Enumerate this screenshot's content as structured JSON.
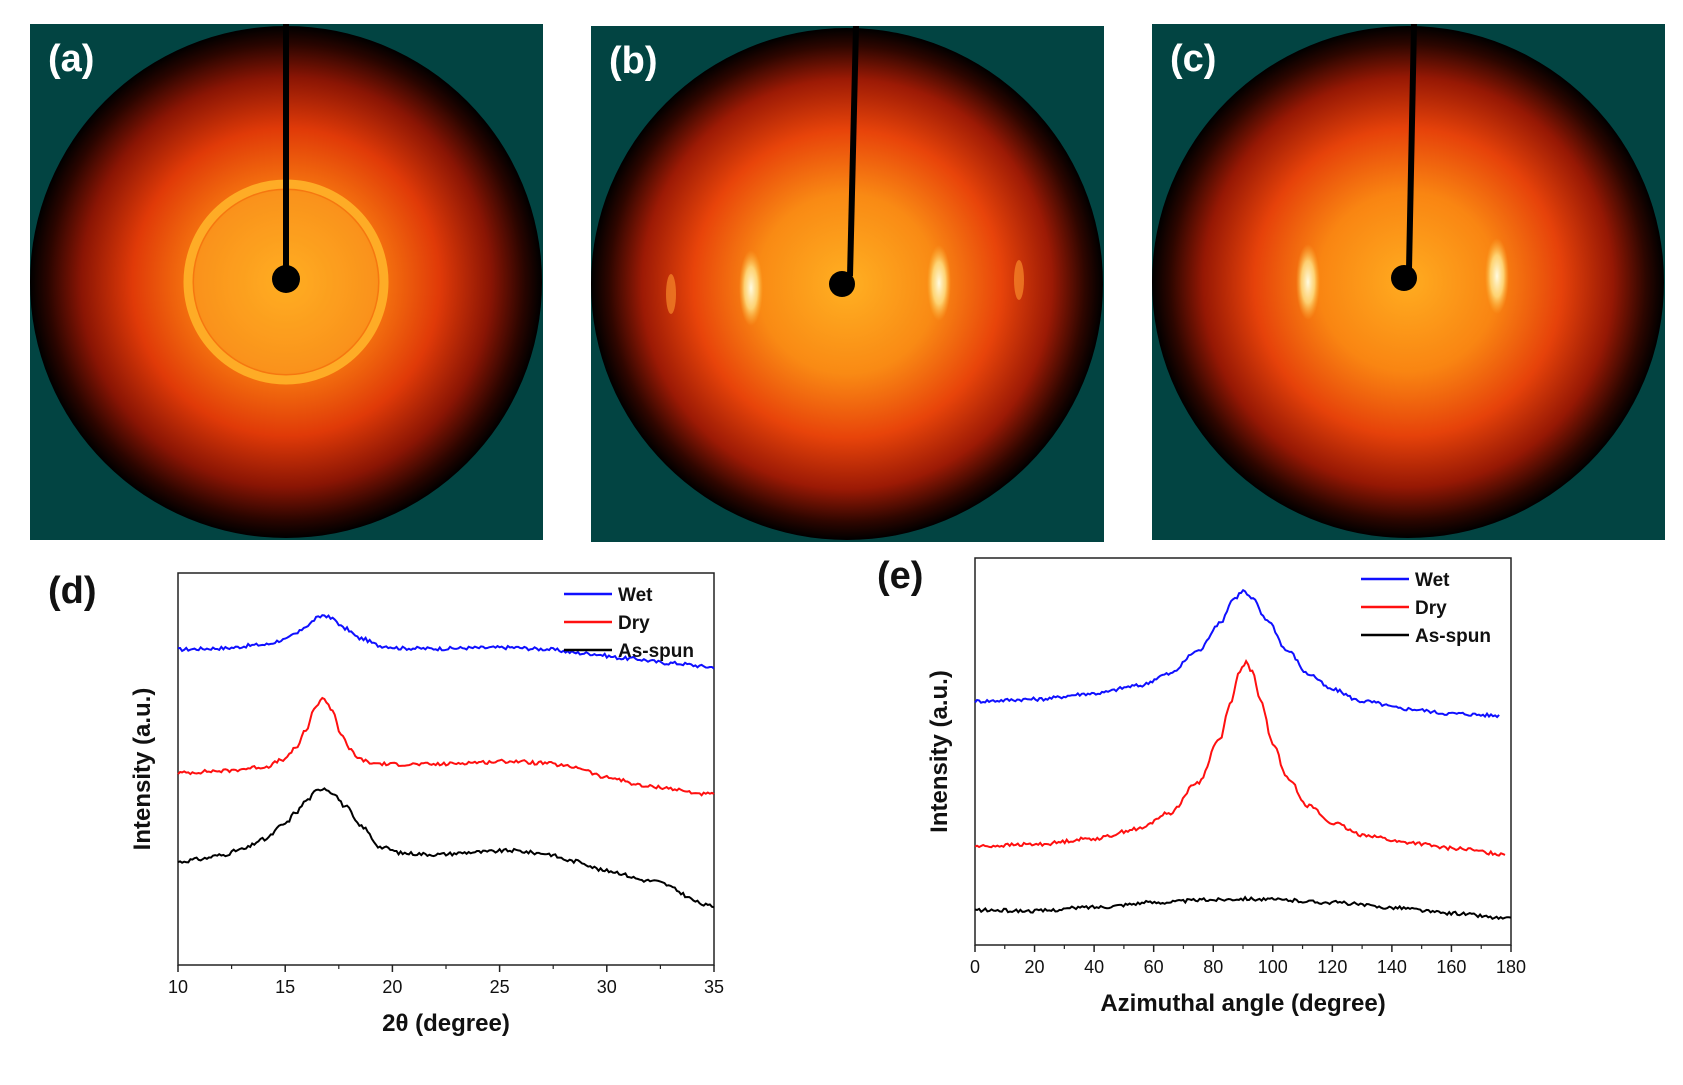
{
  "panels": {
    "a": {
      "label": "(a)"
    },
    "b": {
      "label": "(b)"
    },
    "c": {
      "label": "(c)"
    }
  },
  "colors": {
    "panel_background": "#024442",
    "wet": "#1010ff",
    "dry": "#ff1010",
    "as_spun": "#000000"
  },
  "chart_data": [
    {
      "id": "d",
      "panel_label": "(d)",
      "type": "line",
      "xlabel": "2θ (degree)",
      "ylabel": "Intensity (a.u.)",
      "xlim": [
        10,
        35
      ],
      "ylim": [
        0,
        10
      ],
      "xticks": [
        10,
        15,
        20,
        25,
        30,
        35
      ],
      "xtick_labels": [
        "10",
        "15",
        "20",
        "25",
        "30",
        "35"
      ],
      "legend_position": "top-right",
      "series": [
        {
          "name": "Wet",
          "color": "#1010ff",
          "x": [
            10,
            12,
            14,
            15,
            15.5,
            16,
            16.5,
            16.8,
            17.2,
            17.8,
            18.5,
            19.5,
            20.5,
            22,
            24,
            25.5,
            27,
            29,
            31,
            33,
            35
          ],
          "y": [
            8.05,
            8.08,
            8.17,
            8.3,
            8.45,
            8.65,
            8.85,
            8.93,
            8.83,
            8.58,
            8.33,
            8.14,
            8.08,
            8.07,
            8.09,
            8.1,
            8.06,
            7.95,
            7.82,
            7.7,
            7.6
          ]
        },
        {
          "name": "Dry",
          "color": "#ff1010",
          "x": [
            10,
            12,
            14,
            15,
            15.5,
            16,
            16.4,
            16.8,
            17.2,
            17.6,
            18,
            18.5,
            19,
            20,
            22,
            24,
            25.5,
            27,
            28.5,
            30,
            32,
            35
          ],
          "y": [
            4.9,
            4.95,
            5.05,
            5.25,
            5.55,
            6.0,
            6.6,
            6.8,
            6.5,
            5.9,
            5.5,
            5.25,
            5.15,
            5.12,
            5.12,
            5.17,
            5.2,
            5.15,
            5.05,
            4.78,
            4.55,
            4.35
          ]
        },
        {
          "name": "As-spun",
          "color": "#000000",
          "x": [
            10,
            11,
            12,
            13,
            14,
            15,
            15.5,
            16,
            16.5,
            16.8,
            17.2,
            17.8,
            18.5,
            19.5,
            20.5,
            22,
            24,
            25.5,
            27,
            28.5,
            30,
            32,
            35
          ],
          "y": [
            2.63,
            2.7,
            2.8,
            2.95,
            3.2,
            3.6,
            3.9,
            4.2,
            4.45,
            4.52,
            4.4,
            4.05,
            3.55,
            3.0,
            2.85,
            2.82,
            2.88,
            2.92,
            2.85,
            2.65,
            2.4,
            2.15,
            1.5
          ]
        }
      ]
    },
    {
      "id": "e",
      "panel_label": "(e)",
      "type": "line",
      "xlabel": "Azimuthal angle (degree)",
      "ylabel": "Intensity (a.u.)",
      "xlim": [
        0,
        180
      ],
      "ylim": [
        0,
        10
      ],
      "xticks": [
        0,
        20,
        40,
        60,
        80,
        100,
        120,
        140,
        160,
        180
      ],
      "xtick_labels": [
        "0",
        "20",
        "40",
        "60",
        "80",
        "100",
        "120",
        "140",
        "160",
        "180"
      ],
      "legend_position": "top-right",
      "series": [
        {
          "name": "Wet",
          "color": "#1010ff",
          "x": [
            0,
            20,
            40,
            55,
            65,
            75,
            82,
            87,
            90,
            93,
            98,
            105,
            112,
            120,
            130,
            145,
            160,
            176
          ],
          "y": [
            6.3,
            6.35,
            6.5,
            6.7,
            7.0,
            7.6,
            8.3,
            8.95,
            9.15,
            8.95,
            8.4,
            7.6,
            7.0,
            6.6,
            6.3,
            6.1,
            5.98,
            5.93
          ]
        },
        {
          "name": "Dry",
          "color": "#ff1010",
          "x": [
            0,
            20,
            40,
            55,
            65,
            75,
            82,
            86,
            89,
            91,
            93,
            96,
            100,
            105,
            112,
            120,
            130,
            145,
            160,
            178
          ],
          "y": [
            2.55,
            2.6,
            2.75,
            3.0,
            3.4,
            4.2,
            5.3,
            6.3,
            7.1,
            7.3,
            7.05,
            6.3,
            5.2,
            4.3,
            3.6,
            3.15,
            2.85,
            2.65,
            2.5,
            2.35
          ]
        },
        {
          "name": "As-spun",
          "color": "#000000",
          "x": [
            0,
            20,
            40,
            60,
            80,
            90,
            100,
            120,
            140,
            160,
            180
          ],
          "y": [
            0.9,
            0.88,
            0.98,
            1.1,
            1.17,
            1.2,
            1.17,
            1.1,
            0.97,
            0.82,
            0.68
          ]
        }
      ]
    }
  ]
}
